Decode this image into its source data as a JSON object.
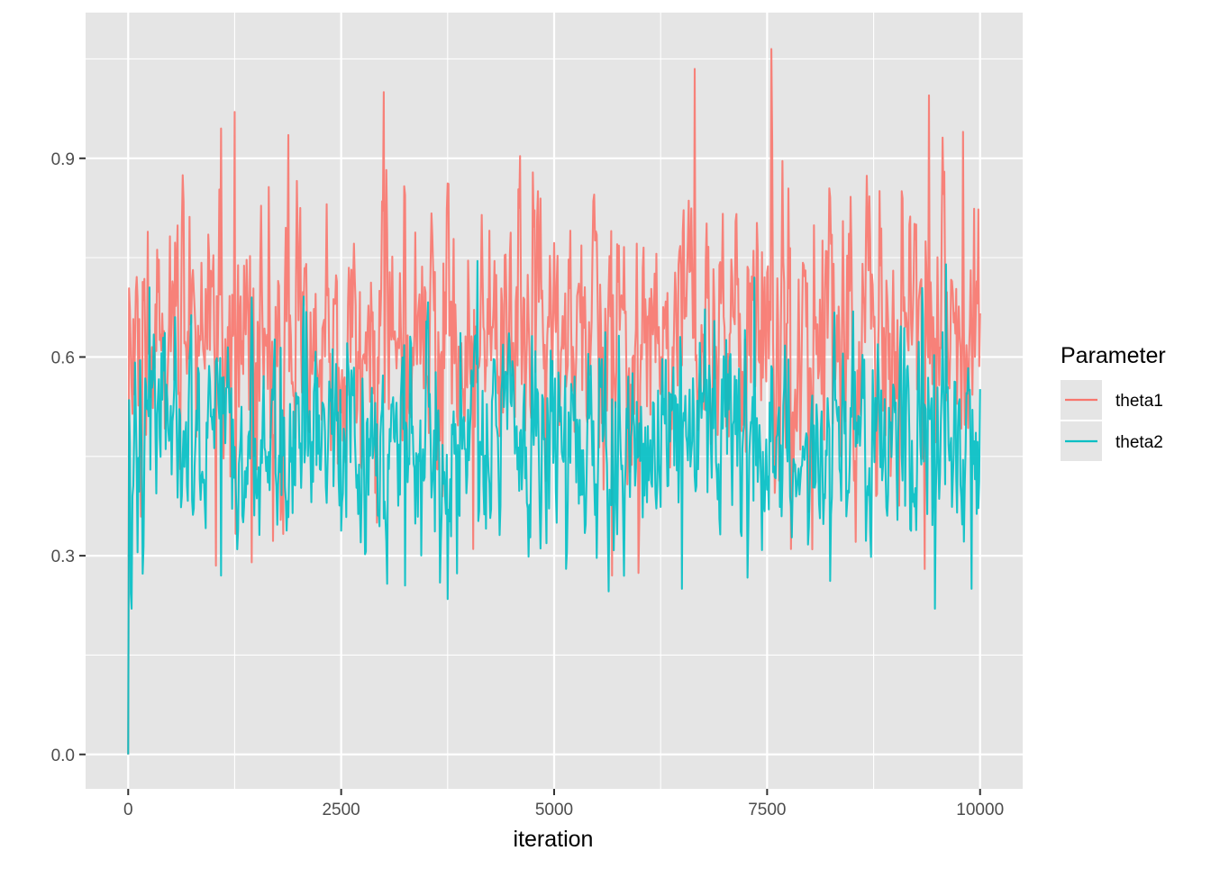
{
  "chart_data": {
    "type": "line",
    "title": "",
    "xlabel": "iteration",
    "ylabel": "",
    "xlim": [
      -500,
      10500
    ],
    "ylim": [
      -0.052,
      1.12
    ],
    "x_ticks": [
      0,
      2500,
      5000,
      7500,
      10000
    ],
    "x_tick_labels": [
      "0",
      "2500",
      "5000",
      "7500",
      "10000"
    ],
    "x_minor_ticks": [
      1250,
      3750,
      6250,
      8750
    ],
    "y_ticks": [
      0.0,
      0.3,
      0.6,
      0.9
    ],
    "y_tick_labels": [
      "0.0",
      "0.3",
      "0.6",
      "0.9"
    ],
    "y_minor_ticks": [
      0.15,
      0.45,
      0.75,
      1.05
    ],
    "grid": true,
    "panel_background": "#e5e5e5",
    "legend": {
      "title": "Parameter",
      "position": "right",
      "entries": [
        "theta1",
        "theta2"
      ]
    },
    "iterations": 10000,
    "sampled_every": 10,
    "series": [
      {
        "name": "theta1",
        "color": "#f8766d",
        "initial_value": 0.0,
        "mean": 0.64,
        "sd": 0.11,
        "min": 0.27,
        "max": 1.065,
        "peaks": [
          {
            "x": 1090,
            "y": 0.945
          },
          {
            "x": 1250,
            "y": 0.97
          },
          {
            "x": 3000,
            "y": 1.0
          },
          {
            "x": 6650,
            "y": 1.035
          },
          {
            "x": 7550,
            "y": 1.065
          },
          {
            "x": 9400,
            "y": 0.995
          },
          {
            "x": 9800,
            "y": 0.94
          }
        ],
        "troughs": [
          {
            "x": 1030,
            "y": 0.285
          },
          {
            "x": 1450,
            "y": 0.29
          },
          {
            "x": 4050,
            "y": 0.31
          },
          {
            "x": 5680,
            "y": 0.27
          },
          {
            "x": 7780,
            "y": 0.31
          },
          {
            "x": 9350,
            "y": 0.28
          }
        ]
      },
      {
        "name": "theta2",
        "color": "#00bfc4",
        "initial_value": 0.0,
        "mean": 0.48,
        "sd": 0.09,
        "min": 0.22,
        "max": 0.745,
        "peaks": [
          {
            "x": 250,
            "y": 0.705
          },
          {
            "x": 1450,
            "y": 0.69
          },
          {
            "x": 4100,
            "y": 0.745
          },
          {
            "x": 7350,
            "y": 0.72
          },
          {
            "x": 9600,
            "y": 0.74
          }
        ],
        "troughs": [
          {
            "x": 1090,
            "y": 0.27
          },
          {
            "x": 3250,
            "y": 0.255
          },
          {
            "x": 6500,
            "y": 0.25
          },
          {
            "x": 9470,
            "y": 0.22
          },
          {
            "x": 9900,
            "y": 0.25
          }
        ]
      }
    ]
  }
}
